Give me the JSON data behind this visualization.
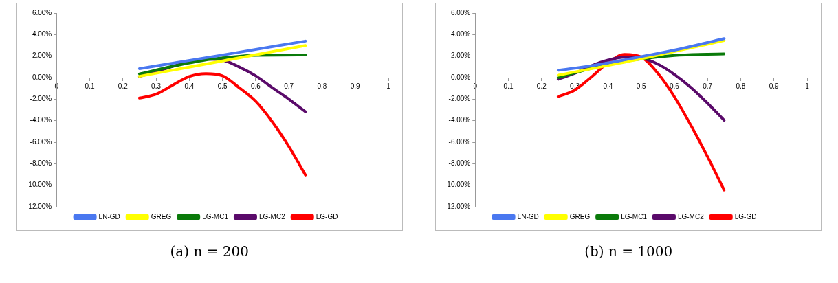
{
  "chart_data": [
    {
      "type": "line",
      "annotations": [
        "(a) n = 200"
      ],
      "xlim": [
        0,
        1
      ],
      "xticks": [
        0,
        0.1,
        0.2,
        0.3,
        0.4,
        0.5,
        0.6,
        0.7,
        0.8,
        0.9,
        1
      ],
      "ylim": [
        -12,
        6
      ],
      "yticks": [
        {
          "value": -12,
          "label": "-12.00%"
        },
        {
          "value": -10,
          "label": "-10.00%"
        },
        {
          "value": -8,
          "label": "-8.00%"
        },
        {
          "value": -6,
          "label": "-6.00%"
        },
        {
          "value": -4,
          "label": "-4.00%"
        },
        {
          "value": -2,
          "label": "-2.00%"
        },
        {
          "value": 0,
          "label": "0.00%"
        },
        {
          "value": 2,
          "label": "2.00%"
        },
        {
          "value": 4,
          "label": "4.00%"
        },
        {
          "value": 6,
          "label": "6.00%"
        }
      ],
      "grid": false,
      "legend": "bottom",
      "marker": "none",
      "line_style": "solid",
      "series": [
        {
          "name": "LN-GD",
          "color": "#4a78f0",
          "x": [
            0.25,
            0.5,
            0.75
          ],
          "values": [
            0.83,
            2.1,
            3.39
          ]
        },
        {
          "name": "GREG",
          "color": "#ffff00",
          "x": [
            0.25,
            0.5,
            0.75
          ],
          "values": [
            0.12,
            1.55,
            2.98
          ]
        },
        {
          "name": "LG-MC1",
          "color": "#0a7a0a",
          "x": [
            0.25,
            0.35,
            0.45,
            0.5,
            0.6,
            0.75
          ],
          "values": [
            0.34,
            1.05,
            1.65,
            1.83,
            2.08,
            2.1
          ]
        },
        {
          "name": "LG-MC2",
          "color": "#5a0a6a",
          "x": [
            0.25,
            0.3,
            0.35,
            0.4,
            0.45,
            0.5,
            0.55,
            0.6,
            0.65,
            0.7,
            0.75
          ],
          "values": [
            0.1,
            0.55,
            1.05,
            1.45,
            1.73,
            1.63,
            1.0,
            0.17,
            -0.93,
            -2.0,
            -3.17
          ]
        },
        {
          "name": "LG-GD",
          "color": "#ff0000",
          "x": [
            0.25,
            0.3,
            0.35,
            0.4,
            0.45,
            0.5,
            0.55,
            0.6,
            0.65,
            0.7,
            0.75
          ],
          "values": [
            -1.9,
            -1.54,
            -0.7,
            0.1,
            0.37,
            0.17,
            -0.93,
            -2.2,
            -4.1,
            -6.4,
            -9.05
          ]
        }
      ]
    },
    {
      "type": "line",
      "annotations": [
        "(b) n = 1000"
      ],
      "xlim": [
        0,
        1
      ],
      "xticks": [
        0,
        0.1,
        0.2,
        0.3,
        0.4,
        0.5,
        0.6,
        0.7,
        0.8,
        0.9,
        1
      ],
      "ylim": [
        -12,
        6
      ],
      "yticks": [
        {
          "value": -12,
          "label": "-12.00%"
        },
        {
          "value": -10,
          "label": "-10.00%"
        },
        {
          "value": -8,
          "label": "-8.00%"
        },
        {
          "value": -6,
          "label": "-6.00%"
        },
        {
          "value": -4,
          "label": "-4.00%"
        },
        {
          "value": -2,
          "label": "-2.00%"
        },
        {
          "value": 0,
          "label": "0.00%"
        },
        {
          "value": 2,
          "label": "2.00%"
        },
        {
          "value": 4,
          "label": "4.00%"
        },
        {
          "value": 6,
          "label": "6.00%"
        }
      ],
      "grid": false,
      "legend": "bottom",
      "marker": "none",
      "line_style": "solid",
      "series": [
        {
          "name": "LN-GD",
          "color": "#4a78f0",
          "x": [
            0.25,
            0.35,
            0.45,
            0.5,
            0.6,
            0.75
          ],
          "values": [
            0.68,
            1.1,
            1.65,
            1.95,
            2.55,
            3.62
          ]
        },
        {
          "name": "GREG",
          "color": "#ffff00",
          "x": [
            0.25,
            0.5,
            0.75
          ],
          "values": [
            0.22,
            1.75,
            3.45
          ]
        },
        {
          "name": "LG-MC1",
          "color": "#0a7a0a",
          "x": [
            0.25,
            0.4,
            0.6,
            0.75
          ],
          "values": [
            0.0,
            1.25,
            2.06,
            2.2
          ]
        },
        {
          "name": "LG-MC2",
          "color": "#5a0a6a",
          "x": [
            0.25,
            0.3,
            0.35,
            0.4,
            0.45,
            0.5,
            0.55,
            0.6,
            0.65,
            0.7,
            0.75
          ],
          "values": [
            -0.15,
            0.4,
            1.1,
            1.63,
            1.9,
            1.82,
            1.26,
            0.3,
            -0.92,
            -2.38,
            -3.96
          ]
        },
        {
          "name": "LG-GD",
          "color": "#ff0000",
          "x": [
            0.25,
            0.3,
            0.35,
            0.4,
            0.45,
            0.5,
            0.55,
            0.6,
            0.65,
            0.7,
            0.75
          ],
          "values": [
            -1.77,
            -1.16,
            0.05,
            1.38,
            2.16,
            1.92,
            0.41,
            -1.77,
            -4.44,
            -7.35,
            -10.44
          ]
        }
      ]
    }
  ]
}
